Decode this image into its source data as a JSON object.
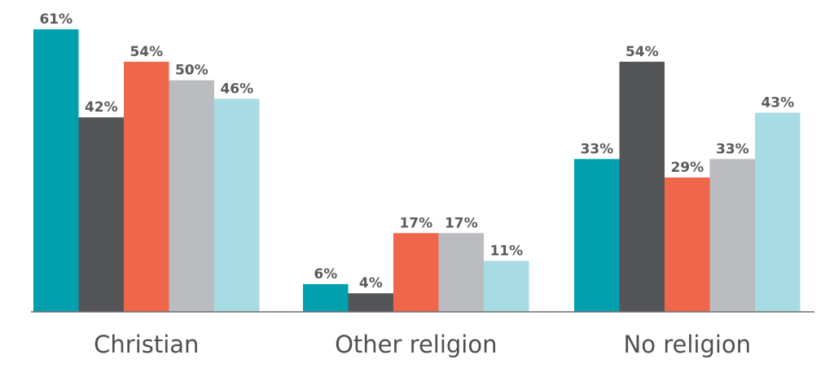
{
  "chart_data": {
    "type": "bar",
    "categories": [
      "Christian",
      "Other religion",
      "No religion"
    ],
    "series": [
      {
        "color": "#00a0ae",
        "values": [
          61,
          6,
          33
        ],
        "labels": [
          "61%",
          "6%",
          "33%"
        ]
      },
      {
        "color": "#545557",
        "values": [
          42,
          4,
          54
        ],
        "labels": [
          "42%",
          "4%",
          "54%"
        ]
      },
      {
        "color": "#f0664a",
        "values": [
          54,
          17,
          29
        ],
        "labels": [
          "54%",
          "17%",
          "29%"
        ]
      },
      {
        "color": "#bbbcc0",
        "values": [
          50,
          17,
          33
        ],
        "labels": [
          "50%",
          "17%",
          "33%"
        ]
      },
      {
        "color": "#a8dbe3",
        "values": [
          46,
          11,
          43
        ],
        "labels": [
          "46%",
          "11%",
          "43%"
        ]
      }
    ],
    "ylim": [
      0,
      61
    ],
    "grid": false,
    "legend": "none",
    "title": "",
    "xlabel": "",
    "ylabel": ""
  }
}
